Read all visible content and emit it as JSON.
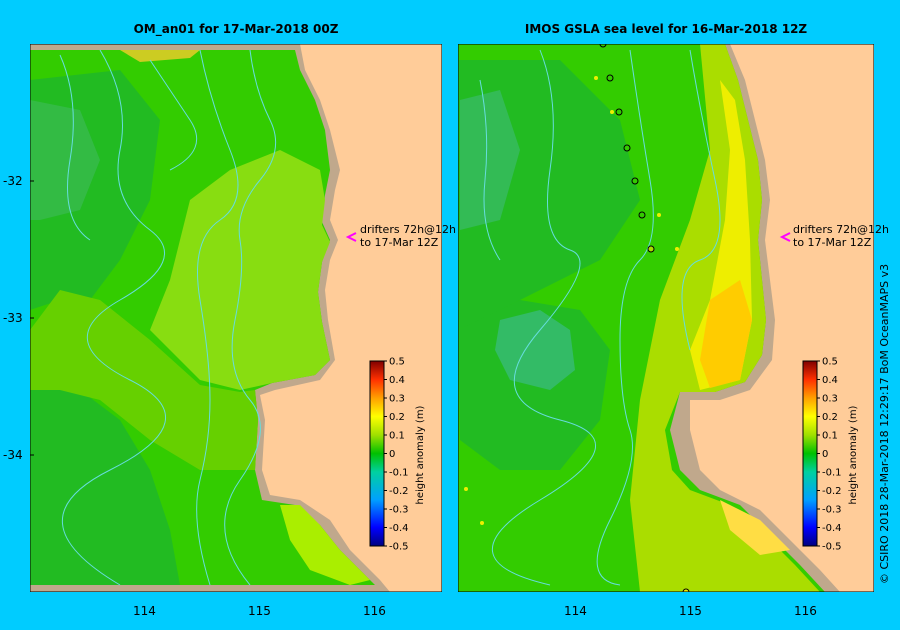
{
  "panels": [
    {
      "title": "OM_an01  for 17-Mar-2018 00Z",
      "drifter_note": [
        "drifters 72h@12h",
        "to 17-Mar 12Z"
      ]
    },
    {
      "title": "IMOS  GSLA sea level   for 16-Mar-2018 12Z",
      "drifter_note": [
        "drifters 72h@12h",
        "to 17-Mar 12Z"
      ]
    }
  ],
  "axes": {
    "lat_ticks": [
      "-32",
      "-33",
      "-34"
    ],
    "lon_ticks": [
      "114",
      "115",
      "116"
    ]
  },
  "colorbar": {
    "label": "height anomaly (m)",
    "ticks": [
      "0.5",
      "0.4",
      "0.3",
      "0.2",
      "0.1",
      "0",
      "-0.1",
      "-0.2",
      "-0.3",
      "-0.4",
      "-0.5"
    ]
  },
  "credit": "© CSIRO 2018   28-Mar-2018 12:29:17 BoM OceanMAPS v3",
  "colors": {
    "background": "#00ccff",
    "land": "#ffcc99",
    "shelf": "#c0a88c",
    "drifter_arrow": "#ff00ff",
    "track": "#66dddd"
  }
}
